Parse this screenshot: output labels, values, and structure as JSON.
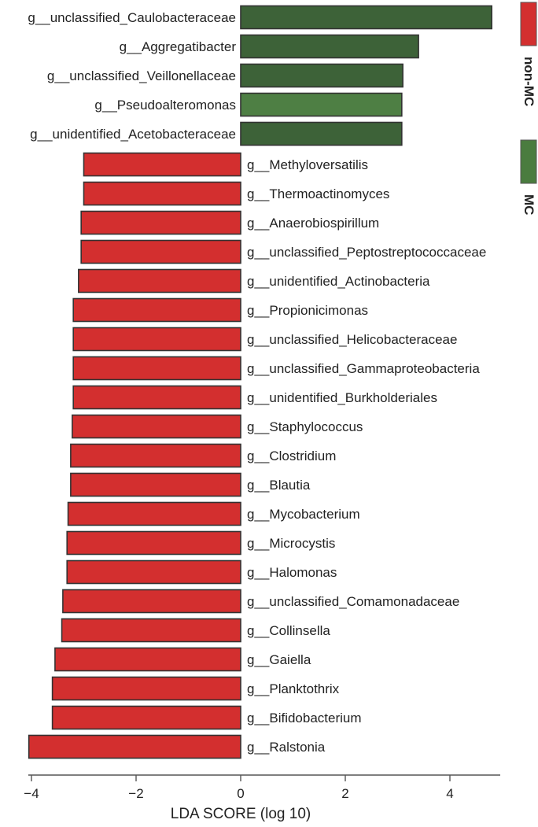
{
  "chart_data": {
    "type": "bar",
    "orientation": "horizontal",
    "xlabel": "LDA SCORE (log 10)",
    "xlim": [
      -4.1,
      4.9
    ],
    "xticks": [
      -4,
      -2,
      0,
      2,
      4
    ],
    "xtick_labels": [
      "−4",
      "−2",
      "0",
      "2",
      "4"
    ],
    "grid": false,
    "legend_position": "right",
    "legend": [
      {
        "label": "non-MC",
        "color": "#d32f2f"
      },
      {
        "label": "MC",
        "color": "#4a7c3f"
      }
    ],
    "series": [
      {
        "name": "MC",
        "color": "#3d6238",
        "categories": [
          "g__unclassified_Caulobacteraceae",
          "g__Aggregatibacter",
          "g__unclassified_Veillonellaceae",
          "g__Pseudoalteromonas",
          "g__unidentified_Acetobacteraceae"
        ],
        "values": [
          4.8,
          3.4,
          3.1,
          3.08,
          3.08
        ]
      },
      {
        "name": "non-MC",
        "color": "#d32f2f",
        "categories": [
          "g__Methyloversatilis",
          "g__Thermoactinomyces",
          "g__Anaerobiospirillum",
          "g__unclassified_Peptostreptococcaceae",
          "g__unidentified_Actinobacteria",
          "g__Propionicimonas",
          "g__unclassified_Helicobacteraceae",
          "g__unclassified_Gammaproteobacteria",
          "g__unidentified_Burkholderiales",
          "g__Staphylococcus",
          "g__Clostridium",
          "g__Blautia",
          "g__Mycobacterium",
          "g__Microcystis",
          "g__Halomonas",
          "g__unclassified_Comamonadaceae",
          "g__Collinsella",
          "g__Gaiella",
          "g__Planktothrix",
          "g__Bifidobacterium",
          "g__Ralstonia"
        ],
        "values": [
          -3.0,
          -3.0,
          -3.05,
          -3.05,
          -3.1,
          -3.2,
          -3.2,
          -3.2,
          -3.2,
          -3.22,
          -3.25,
          -3.25,
          -3.3,
          -3.32,
          -3.32,
          -3.4,
          -3.42,
          -3.55,
          -3.6,
          -3.6,
          -4.05
        ]
      }
    ]
  }
}
